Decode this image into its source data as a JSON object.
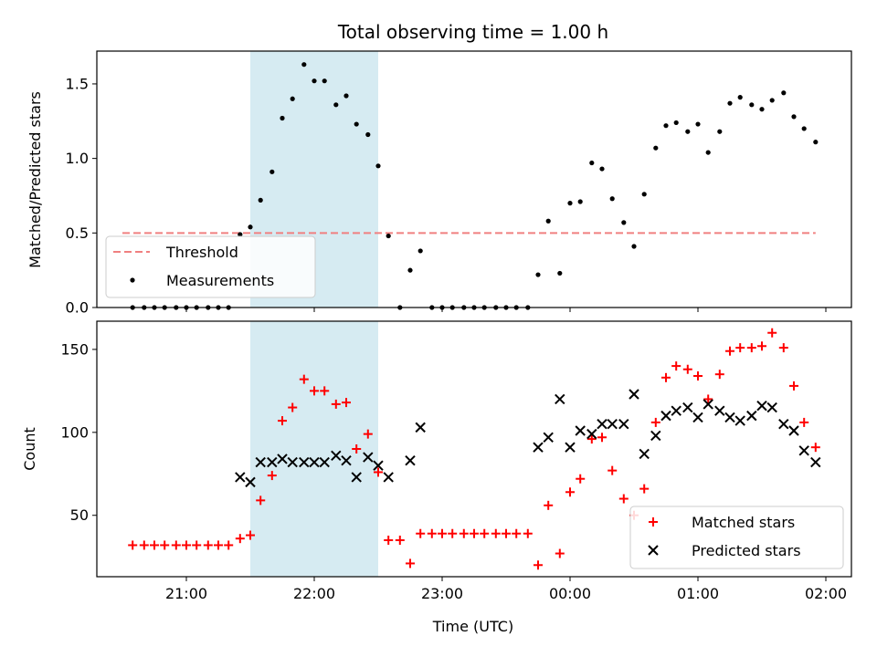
{
  "chart_data": [
    {
      "type": "scatter",
      "title": "Total observing time = 1.00 h",
      "ylabel": "Matched/Predicted stars",
      "xlabel": "",
      "ylim": [
        0,
        1.72
      ],
      "yticks": [
        "0.0",
        "0.5",
        "1.0",
        "1.5"
      ],
      "ytick_values": [
        0.0,
        0.5,
        1.0,
        1.5
      ],
      "shaded_span_hours": [
        21.5,
        22.5
      ],
      "shaded_color": "#add8e6",
      "legend_position": "lower-left",
      "threshold": {
        "name": "Threshold",
        "y": 0.5,
        "x_range_hours": [
          20.5,
          25.92
        ],
        "color": "#f08080"
      },
      "series": [
        {
          "name": "Measurements",
          "color": "#000000",
          "marker": "dot",
          "x_hours": [
            20.58,
            20.67,
            20.75,
            20.83,
            20.92,
            21.0,
            21.08,
            21.17,
            21.25,
            21.33,
            21.42,
            21.5,
            21.58,
            21.67,
            21.75,
            21.83,
            21.92,
            22.0,
            22.08,
            22.17,
            22.25,
            22.33,
            22.42,
            22.5,
            22.58,
            22.67,
            22.75,
            22.83,
            22.92,
            23.0,
            23.08,
            23.17,
            23.25,
            23.33,
            23.42,
            23.5,
            23.58,
            23.67,
            23.75,
            23.83,
            23.92,
            24.0,
            24.08,
            24.17,
            24.25,
            24.33,
            24.42,
            24.5,
            24.58,
            24.67,
            24.75,
            24.83,
            24.92,
            25.0,
            25.08,
            25.17,
            25.25,
            25.33,
            25.42,
            25.5,
            25.58,
            25.67,
            25.75,
            25.83,
            25.92
          ],
          "y": [
            0,
            0,
            0,
            0,
            0,
            0,
            0,
            0,
            0,
            0,
            0.49,
            0.54,
            0.72,
            0.91,
            1.27,
            1.4,
            1.63,
            1.52,
            1.52,
            1.36,
            1.42,
            1.23,
            1.16,
            0.95,
            0.48,
            0,
            0.25,
            0.38,
            0,
            0,
            0,
            0,
            0,
            0,
            0,
            0,
            0,
            0,
            0.22,
            0.58,
            0.23,
            0.7,
            0.71,
            0.97,
            0.93,
            0.73,
            0.57,
            0.41,
            0.76,
            1.07,
            1.22,
            1.24,
            1.18,
            1.23,
            1.04,
            1.18,
            1.37,
            1.41,
            1.36,
            1.33,
            1.39,
            1.44,
            1.28,
            1.2,
            1.11
          ]
        }
      ]
    },
    {
      "type": "scatter",
      "title": "",
      "ylabel": "Count",
      "xlabel": "Time (UTC)",
      "ylim": [
        13,
        167
      ],
      "yticks": [
        "50",
        "100",
        "150"
      ],
      "ytick_values": [
        50,
        100,
        150
      ],
      "xlim_hours": [
        20.3,
        26.2
      ],
      "xticks": [
        "21:00",
        "22:00",
        "23:00",
        "00:00",
        "01:00",
        "02:00"
      ],
      "xtick_hours": [
        21,
        22,
        23,
        24,
        25,
        26
      ],
      "shaded_span_hours": [
        21.5,
        22.5
      ],
      "shaded_color": "#add8e6",
      "legend_position": "lower-right",
      "series": [
        {
          "name": "Matched stars",
          "color": "#ff0000",
          "marker": "plus",
          "x_hours": [
            20.58,
            20.67,
            20.75,
            20.83,
            20.92,
            21.0,
            21.08,
            21.17,
            21.25,
            21.33,
            21.42,
            21.5,
            21.58,
            21.67,
            21.75,
            21.83,
            21.92,
            22.0,
            22.08,
            22.17,
            22.25,
            22.33,
            22.42,
            22.5,
            22.58,
            22.67,
            22.75,
            22.83,
            22.92,
            23.0,
            23.08,
            23.17,
            23.25,
            23.33,
            23.42,
            23.5,
            23.58,
            23.67,
            23.75,
            23.83,
            23.92,
            24.0,
            24.08,
            24.17,
            24.25,
            24.33,
            24.42,
            24.5,
            24.58,
            24.67,
            24.75,
            24.83,
            24.92,
            25.0,
            25.08,
            25.17,
            25.25,
            25.33,
            25.42,
            25.5,
            25.58,
            25.67,
            25.75,
            25.83,
            25.92
          ],
          "y": [
            32,
            32,
            32,
            32,
            32,
            32,
            32,
            32,
            32,
            32,
            36,
            38,
            59,
            74,
            107,
            115,
            132,
            125,
            125,
            117,
            118,
            90,
            99,
            76,
            35,
            35,
            21,
            39,
            39,
            39,
            39,
            39,
            39,
            39,
            39,
            39,
            39,
            39,
            20,
            56,
            27,
            64,
            72,
            96,
            97,
            77,
            60,
            50,
            66,
            106,
            133,
            140,
            138,
            134,
            120,
            135,
            149,
            151,
            151,
            152,
            160,
            151,
            128,
            106,
            91
          ]
        },
        {
          "name": "Predicted stars",
          "color": "#000000",
          "marker": "x",
          "x_hours": [
            21.42,
            21.5,
            21.58,
            21.67,
            21.75,
            21.83,
            21.92,
            22.0,
            22.08,
            22.17,
            22.25,
            22.33,
            22.42,
            22.5,
            22.58,
            22.75,
            22.83,
            23.75,
            23.83,
            23.92,
            24.0,
            24.08,
            24.17,
            24.25,
            24.33,
            24.42,
            24.5,
            24.58,
            24.67,
            24.75,
            24.83,
            24.92,
            25.0,
            25.08,
            25.17,
            25.25,
            25.33,
            25.42,
            25.5,
            25.58,
            25.67,
            25.75,
            25.83,
            25.92
          ],
          "y": [
            73,
            70,
            82,
            82,
            84,
            82,
            82,
            82,
            82,
            86,
            83,
            73,
            85,
            80,
            73,
            83,
            103,
            91,
            97,
            120,
            91,
            101,
            99,
            105,
            105,
            105,
            123,
            87,
            98,
            110,
            113,
            115,
            109,
            117,
            113,
            109,
            107,
            110,
            116,
            115,
            105,
            101,
            89,
            82
          ]
        }
      ]
    }
  ]
}
